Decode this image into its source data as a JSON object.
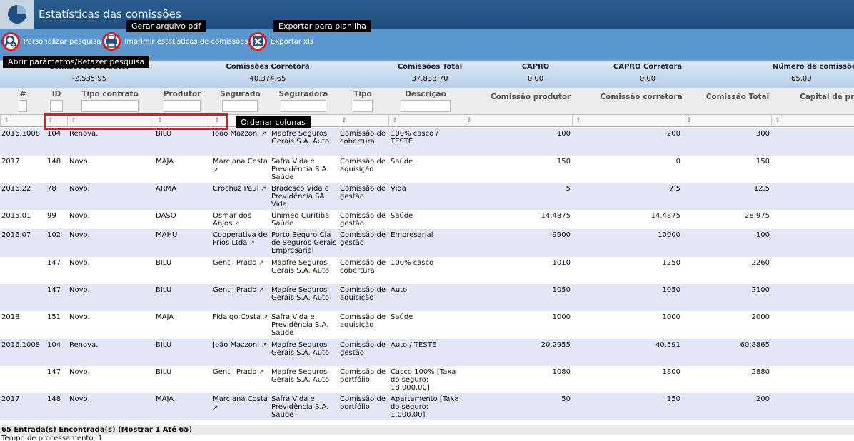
{
  "window": {
    "title": "Estatísticas das comissões"
  },
  "toolbar": {
    "search_label": "Personalizar pesquisa",
    "print_label": "Imprimir estatísticas de comissões",
    "export_label": "Exportar xls"
  },
  "tooltips": {
    "pdf": "Gerar arquivo pdf",
    "sheet": "Exportar para planilha",
    "search": "Abrir parâmetros/Refazer pesquisa",
    "sort": "Ordenar colunas"
  },
  "summary": {
    "producer": {
      "label": "Comissões Produtor",
      "value": "-2.535,95"
    },
    "broker": {
      "label": "Comissões Corretora",
      "value": "40.374,65"
    },
    "total": {
      "label": "Comissões Total",
      "value": "37.838,70"
    },
    "capro": {
      "label": "CAPRO",
      "value": "0,00"
    },
    "capro_broker": {
      "label": "CAPRO Corretora",
      "value": "0,00"
    },
    "count": {
      "label": "Número de comissõe",
      "value": "65,00"
    }
  },
  "columns": {
    "num": "#",
    "id": "ID",
    "contract": "Tipo contrato",
    "producer": "Produtor",
    "insured": "Segurado",
    "insurer": "Seguradora",
    "type": "Tipo",
    "description": "Descrição",
    "comm_producer": "Comissão produtor",
    "comm_broker": "Comissão corretora",
    "comm_total": "Comissão Total",
    "capital": "Capital de pr"
  },
  "rows": [
    {
      "num": "2016.1008",
      "id": "104",
      "contract": "Renova.",
      "producer": "BILU",
      "insured": "João Mazzoni",
      "insurer": "Mapfre Seguros Gerais S.A. Auto",
      "type": "Comissão de cobertura",
      "description": "100% casco / TESTE",
      "p": "100",
      "b": "200",
      "t": "300"
    },
    {
      "num": "2017",
      "id": "148",
      "contract": "Novo.",
      "producer": "MAJA",
      "insured": "Marciana Costa",
      "insurer": "Safra Vida e Previdência S.A. Saúde",
      "type": "Comissão de aquisição",
      "description": "Saúde",
      "p": "150",
      "b": "0",
      "t": "150"
    },
    {
      "num": "2016.22",
      "id": "78",
      "contract": "Novo.",
      "producer": "ARMA",
      "insured": "Crochuz Paul",
      "insurer": "Bradesco Vida e Previdência SA Vida",
      "type": "Comissão de gestão",
      "description": "Vida",
      "p": "5",
      "b": "7.5",
      "t": "12.5"
    },
    {
      "num": "2015.01",
      "id": "99",
      "contract": "Novo.",
      "producer": "DASO",
      "insured": "Osmar dos Anjos",
      "insurer": "Unimed Curitiba Saúde",
      "type": "Comissão de gestão",
      "description": "Saúde",
      "p": "14.4875",
      "b": "14.4875",
      "t": "28.975"
    },
    {
      "num": "2016.07",
      "id": "102",
      "contract": "Novo.",
      "producer": "MAHU",
      "insured": "Cooperativa de Frios Ltda",
      "insurer": "Porto Seguro Cia de Seguros Gerais Empresarial",
      "type": "Comissão de gestão",
      "description": "Empresarial",
      "p": "-9900",
      "b": "10000",
      "t": "100"
    },
    {
      "num": "",
      "id": "147",
      "contract": "Novo.",
      "producer": "BILU",
      "insured": "Gentil Prado",
      "insurer": "Mapfre Seguros Gerais S.A. Auto",
      "type": "Comissão de cobertura",
      "description": "100% casco",
      "p": "1010",
      "b": "1250",
      "t": "2260"
    },
    {
      "num": "",
      "id": "147",
      "contract": "Novo.",
      "producer": "BILU",
      "insured": "Gentil Prado",
      "insurer": "Mapfre Seguros Gerais S.A. Auto",
      "type": "Comissão de aquisição",
      "description": "Auto",
      "p": "1050",
      "b": "1050",
      "t": "2100"
    },
    {
      "num": "2018",
      "id": "151",
      "contract": "Novo.",
      "producer": "MAJA",
      "insured": "Fidalgo Costa",
      "insurer": "Safra Vida e Previdência S.A. Saúde",
      "type": "Comissão de aquisição",
      "description": "Saúde",
      "p": "1000",
      "b": "1000",
      "t": "2000"
    },
    {
      "num": "2016.1008",
      "id": "104",
      "contract": "Renova.",
      "producer": "BILU",
      "insured": "João Mazzoni",
      "insurer": "Mapfre Seguros Gerais S.A. Auto",
      "type": "Comissão de gestão",
      "description": "Auto / TESTE",
      "p": "20.2955",
      "b": "40.591",
      "t": "60.8865"
    },
    {
      "num": "",
      "id": "147",
      "contract": "Novo.",
      "producer": "BILU",
      "insured": "Gentil Prado",
      "insurer": "Mapfre Seguros Gerais S.A. Auto",
      "type": "Comissão de portfólio",
      "description": "Casco 100% [Taxa do seguro: 18.000,00]",
      "p": "1080",
      "b": "1800",
      "t": "2880"
    },
    {
      "num": "2017",
      "id": "148",
      "contract": "Novo.",
      "producer": "MAJA",
      "insured": "Marciana Costa",
      "insurer": "Safra Vida e Previdência S.A. Saúde",
      "type": "Comissão de portfólio",
      "description": "Apartamento [Taxa do seguro: 1.000,00]",
      "p": "50",
      "b": "150",
      "t": "200"
    }
  ],
  "footer": {
    "entries": "65 Entrada(s) Encontrada(s) (Mostrar 1 Até 65)",
    "time": "Tempo de processamento: 1"
  },
  "colors": {
    "title_bar": "#1f4f7f",
    "toolbar": "#5a97cf",
    "highlight": "#e01b1b",
    "row_alt": "#e4e6f8"
  }
}
